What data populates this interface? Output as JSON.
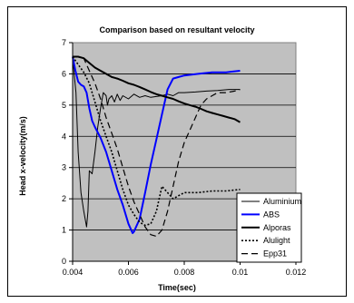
{
  "chart_data": {
    "type": "line",
    "title": "Comparison based on resultant velocity",
    "xlabel": "Time(sec)",
    "ylabel": "Head x-velocity(m/s)",
    "xlim": [
      0.004,
      0.012
    ],
    "ylim": [
      0,
      7
    ],
    "xticks": [
      "0.004",
      "0.006",
      "0.008",
      "0.01",
      "0.012"
    ],
    "yticks": [
      "0",
      "1",
      "2",
      "3",
      "4",
      "5",
      "6",
      "7"
    ],
    "grid": true,
    "background": "#c0c0c0",
    "legend_position": "bottom-right",
    "series": [
      {
        "name": "Aluminium",
        "color": "#000000",
        "dash": "solid",
        "width": 1,
        "points": [
          [
            0.004,
            6.5
          ],
          [
            0.00412,
            5.4
          ],
          [
            0.0042,
            3.5
          ],
          [
            0.0043,
            2.2
          ],
          [
            0.0044,
            1.6
          ],
          [
            0.0045,
            1.1
          ],
          [
            0.00455,
            1.6
          ],
          [
            0.0046,
            2.9
          ],
          [
            0.0047,
            2.8
          ],
          [
            0.0048,
            3.5
          ],
          [
            0.0049,
            4.3
          ],
          [
            0.005,
            4.9
          ],
          [
            0.0051,
            5.4
          ],
          [
            0.0052,
            5.3
          ],
          [
            0.00525,
            5.0
          ],
          [
            0.0053,
            5.2
          ],
          [
            0.0054,
            5.3
          ],
          [
            0.0055,
            5.1
          ],
          [
            0.0056,
            5.35
          ],
          [
            0.0057,
            5.15
          ],
          [
            0.0058,
            5.3
          ],
          [
            0.006,
            5.2
          ],
          [
            0.0062,
            5.35
          ],
          [
            0.0064,
            5.25
          ],
          [
            0.0066,
            5.3
          ],
          [
            0.0068,
            5.25
          ],
          [
            0.0072,
            5.3
          ],
          [
            0.0074,
            5.35
          ],
          [
            0.0076,
            5.3
          ],
          [
            0.0078,
            5.4
          ],
          [
            0.008,
            5.4
          ],
          [
            0.0084,
            5.42
          ],
          [
            0.0088,
            5.45
          ],
          [
            0.0092,
            5.47
          ],
          [
            0.0096,
            5.5
          ],
          [
            0.01,
            5.5
          ]
        ]
      },
      {
        "name": "ABS",
        "color": "#0000ff",
        "dash": "solid",
        "width": 2,
        "points": [
          [
            0.004,
            6.55
          ],
          [
            0.0041,
            6.1
          ],
          [
            0.0042,
            5.75
          ],
          [
            0.0043,
            5.65
          ],
          [
            0.0044,
            5.6
          ],
          [
            0.0045,
            5.4
          ],
          [
            0.0046,
            4.9
          ],
          [
            0.0047,
            4.5
          ],
          [
            0.0048,
            4.3
          ],
          [
            0.005,
            3.95
          ],
          [
            0.0052,
            3.5
          ],
          [
            0.0054,
            2.9
          ],
          [
            0.0056,
            2.3
          ],
          [
            0.0058,
            1.8
          ],
          [
            0.006,
            1.2
          ],
          [
            0.00615,
            0.9
          ],
          [
            0.0062,
            0.95
          ],
          [
            0.0064,
            1.35
          ],
          [
            0.0066,
            2.2
          ],
          [
            0.0068,
            3.1
          ],
          [
            0.007,
            3.9
          ],
          [
            0.0072,
            4.7
          ],
          [
            0.0074,
            5.5
          ],
          [
            0.0076,
            5.85
          ],
          [
            0.0078,
            5.9
          ],
          [
            0.008,
            5.95
          ],
          [
            0.0085,
            6.0
          ],
          [
            0.009,
            6.05
          ],
          [
            0.0095,
            6.05
          ],
          [
            0.01,
            6.1
          ]
        ]
      },
      {
        "name": "Alporas",
        "color": "#000000",
        "dash": "solid",
        "width": 2,
        "points": [
          [
            0.004,
            6.55
          ],
          [
            0.0042,
            6.55
          ],
          [
            0.0044,
            6.5
          ],
          [
            0.0046,
            6.35
          ],
          [
            0.0048,
            6.2
          ],
          [
            0.005,
            6.1
          ],
          [
            0.0052,
            6.0
          ],
          [
            0.0054,
            5.9
          ],
          [
            0.0056,
            5.85
          ],
          [
            0.0058,
            5.78
          ],
          [
            0.006,
            5.7
          ],
          [
            0.0062,
            5.65
          ],
          [
            0.0064,
            5.58
          ],
          [
            0.0066,
            5.5
          ],
          [
            0.0068,
            5.42
          ],
          [
            0.007,
            5.35
          ],
          [
            0.0072,
            5.3
          ],
          [
            0.0074,
            5.25
          ],
          [
            0.0076,
            5.2
          ],
          [
            0.0078,
            5.12
          ],
          [
            0.008,
            5.05
          ],
          [
            0.0082,
            5.0
          ],
          [
            0.0084,
            4.95
          ],
          [
            0.0086,
            4.88
          ],
          [
            0.0088,
            4.8
          ],
          [
            0.009,
            4.75
          ],
          [
            0.0092,
            4.7
          ],
          [
            0.0094,
            4.65
          ],
          [
            0.0096,
            4.6
          ],
          [
            0.0098,
            4.55
          ],
          [
            0.01,
            4.45
          ]
        ]
      },
      {
        "name": "Alulight",
        "color": "#000000",
        "dash": "2,2",
        "width": 1.6,
        "points": [
          [
            0.004,
            6.55
          ],
          [
            0.0042,
            6.3
          ],
          [
            0.0044,
            6.05
          ],
          [
            0.0046,
            5.7
          ],
          [
            0.0048,
            5.1
          ],
          [
            0.005,
            4.5
          ],
          [
            0.0052,
            4.0
          ],
          [
            0.0054,
            3.5
          ],
          [
            0.0056,
            2.9
          ],
          [
            0.0058,
            2.3
          ],
          [
            0.006,
            1.8
          ],
          [
            0.0062,
            1.5
          ],
          [
            0.0064,
            1.25
          ],
          [
            0.0066,
            1.15
          ],
          [
            0.0068,
            1.2
          ],
          [
            0.007,
            1.6
          ],
          [
            0.0072,
            2.4
          ],
          [
            0.0074,
            2.2
          ],
          [
            0.0076,
            2.0
          ],
          [
            0.0078,
            2.1
          ],
          [
            0.008,
            2.2
          ],
          [
            0.0085,
            2.2
          ],
          [
            0.009,
            2.25
          ],
          [
            0.0095,
            2.25
          ],
          [
            0.01,
            2.3
          ]
        ]
      },
      {
        "name": "Epp31",
        "color": "#000000",
        "dash": "7,4",
        "width": 1.2,
        "points": [
          [
            0.004,
            6.55
          ],
          [
            0.0042,
            6.55
          ],
          [
            0.0044,
            6.5
          ],
          [
            0.0046,
            6.1
          ],
          [
            0.0048,
            5.7
          ],
          [
            0.005,
            5.2
          ],
          [
            0.0052,
            4.6
          ],
          [
            0.0054,
            4.1
          ],
          [
            0.0056,
            3.6
          ],
          [
            0.0058,
            3.0
          ],
          [
            0.006,
            2.4
          ],
          [
            0.0062,
            1.9
          ],
          [
            0.0064,
            1.5
          ],
          [
            0.0066,
            1.1
          ],
          [
            0.0068,
            0.85
          ],
          [
            0.007,
            0.8
          ],
          [
            0.0072,
            1.0
          ],
          [
            0.0074,
            1.6
          ],
          [
            0.0076,
            2.4
          ],
          [
            0.0078,
            3.2
          ],
          [
            0.008,
            3.8
          ],
          [
            0.0082,
            4.2
          ],
          [
            0.0084,
            4.6
          ],
          [
            0.0086,
            5.0
          ],
          [
            0.0088,
            5.2
          ],
          [
            0.009,
            5.3
          ],
          [
            0.0092,
            5.4
          ],
          [
            0.0095,
            5.4
          ],
          [
            0.0098,
            5.45
          ],
          [
            0.01,
            5.5
          ]
        ]
      }
    ]
  }
}
